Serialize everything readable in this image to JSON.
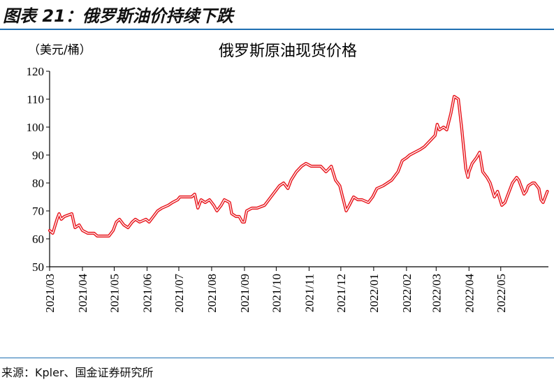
{
  "figure": {
    "title": "图表 21：俄罗斯油价持续下跌",
    "source": "来源：Kpler、国金证券研究所"
  },
  "chart_data": {
    "type": "line",
    "title": "俄罗斯原油现货价格",
    "ylabel": "（美元/桶）",
    "xlabel": "",
    "ylim": [
      50,
      120
    ],
    "yticks": [
      "50",
      "60",
      "70",
      "80",
      "90",
      "100",
      "110",
      "120"
    ],
    "xticks": [
      "2021/03",
      "2021/04",
      "2021/05",
      "2021/06",
      "2021/07",
      "2021/08",
      "2021/09",
      "2021/10",
      "2021/11",
      "2021/12",
      "2022/01",
      "2022/02",
      "2022/03",
      "2022/04",
      "2022/05"
    ],
    "grid": false,
    "legend": "none",
    "series_color": "#e8141b",
    "series": [
      {
        "points": [
          [
            "2021-03-01",
            63
          ],
          [
            "2021-03-04",
            62
          ],
          [
            "2021-03-08",
            67
          ],
          [
            "2021-03-10",
            69
          ],
          [
            "2021-03-12",
            67
          ],
          [
            "2021-03-15",
            68
          ],
          [
            "2021-03-22",
            69
          ],
          [
            "2021-03-25",
            64
          ],
          [
            "2021-03-29",
            65
          ],
          [
            "2021-04-01",
            63
          ],
          [
            "2021-04-06",
            62
          ],
          [
            "2021-04-12",
            62
          ],
          [
            "2021-04-15",
            61
          ],
          [
            "2021-04-20",
            61
          ],
          [
            "2021-04-26",
            61
          ],
          [
            "2021-04-30",
            63
          ],
          [
            "2021-05-03",
            66
          ],
          [
            "2021-05-06",
            67
          ],
          [
            "2021-05-10",
            65
          ],
          [
            "2021-05-14",
            64
          ],
          [
            "2021-05-18",
            66
          ],
          [
            "2021-05-21",
            67
          ],
          [
            "2021-05-25",
            66
          ],
          [
            "2021-05-31",
            67
          ],
          [
            "2021-06-03",
            66
          ],
          [
            "2021-06-07",
            68
          ],
          [
            "2021-06-11",
            70
          ],
          [
            "2021-06-15",
            71
          ],
          [
            "2021-06-21",
            72
          ],
          [
            "2021-06-25",
            73
          ],
          [
            "2021-06-30",
            74
          ],
          [
            "2021-07-02",
            75
          ],
          [
            "2021-07-08",
            75
          ],
          [
            "2021-07-13",
            75
          ],
          [
            "2021-07-16",
            76
          ],
          [
            "2021-07-19",
            71
          ],
          [
            "2021-07-22",
            74
          ],
          [
            "2021-07-26",
            73
          ],
          [
            "2021-07-30",
            74
          ],
          [
            "2021-08-03",
            72
          ],
          [
            "2021-08-06",
            70
          ],
          [
            "2021-08-10",
            72
          ],
          [
            "2021-08-13",
            74
          ],
          [
            "2021-08-18",
            73
          ],
          [
            "2021-08-20",
            69
          ],
          [
            "2021-08-24",
            68
          ],
          [
            "2021-08-27",
            68
          ],
          [
            "2021-08-30",
            66
          ],
          [
            "2021-09-01",
            66
          ],
          [
            "2021-09-03",
            70
          ],
          [
            "2021-09-08",
            71
          ],
          [
            "2021-09-13",
            71
          ],
          [
            "2021-09-20",
            72
          ],
          [
            "2021-09-24",
            74
          ],
          [
            "2021-09-30",
            77
          ],
          [
            "2021-10-04",
            79
          ],
          [
            "2021-10-08",
            80
          ],
          [
            "2021-10-12",
            78
          ],
          [
            "2021-10-15",
            81
          ],
          [
            "2021-10-20",
            84
          ],
          [
            "2021-10-25",
            86
          ],
          [
            "2021-10-29",
            87
          ],
          [
            "2021-11-03",
            86
          ],
          [
            "2021-11-08",
            86
          ],
          [
            "2021-11-12",
            86
          ],
          [
            "2021-11-17",
            84
          ],
          [
            "2021-11-22",
            86
          ],
          [
            "2021-11-26",
            81
          ],
          [
            "2021-11-30",
            79
          ],
          [
            "2021-12-02",
            76
          ],
          [
            "2021-12-06",
            70
          ],
          [
            "2021-12-09",
            72
          ],
          [
            "2021-12-13",
            75
          ],
          [
            "2021-12-17",
            74
          ],
          [
            "2021-12-21",
            74
          ],
          [
            "2021-12-27",
            73
          ],
          [
            "2021-12-31",
            75
          ],
          [
            "2022-01-04",
            78
          ],
          [
            "2022-01-10",
            79
          ],
          [
            "2022-01-14",
            80
          ],
          [
            "2022-01-18",
            81
          ],
          [
            "2022-01-24",
            84
          ],
          [
            "2022-01-28",
            88
          ],
          [
            "2022-02-01",
            89
          ],
          [
            "2022-02-04",
            90
          ],
          [
            "2022-02-09",
            91
          ],
          [
            "2022-02-14",
            92
          ],
          [
            "2022-02-18",
            93
          ],
          [
            "2022-02-23",
            95
          ],
          [
            "2022-02-28",
            97
          ],
          [
            "2022-03-02",
            101
          ],
          [
            "2022-03-04",
            99
          ],
          [
            "2022-03-08",
            100
          ],
          [
            "2022-03-11",
            99
          ],
          [
            "2022-03-15",
            105
          ],
          [
            "2022-03-18",
            111
          ],
          [
            "2022-03-22",
            110
          ],
          [
            "2022-03-25",
            100
          ],
          [
            "2022-03-29",
            85
          ],
          [
            "2022-03-31",
            82
          ],
          [
            "2022-04-01",
            84
          ],
          [
            "2022-04-04",
            87
          ],
          [
            "2022-04-08",
            89
          ],
          [
            "2022-04-11",
            91
          ],
          [
            "2022-04-14",
            84
          ],
          [
            "2022-04-18",
            82
          ],
          [
            "2022-04-21",
            80
          ],
          [
            "2022-04-25",
            75
          ],
          [
            "2022-04-28",
            77
          ],
          [
            "2022-05-02",
            72
          ],
          [
            "2022-05-05",
            73
          ],
          [
            "2022-05-09",
            77
          ],
          [
            "2022-05-12",
            80
          ],
          [
            "2022-05-16",
            82
          ],
          [
            "2022-05-18",
            81
          ],
          [
            "2022-05-20",
            79
          ],
          [
            "2022-05-23",
            76
          ],
          [
            "2022-05-25",
            77
          ],
          [
            "2022-05-27",
            79
          ],
          [
            "2022-05-31",
            80
          ],
          [
            "2022-06-02",
            80
          ],
          [
            "2022-06-06",
            78
          ],
          [
            "2022-06-08",
            74
          ],
          [
            "2022-06-10",
            73
          ],
          [
            "2022-06-14",
            77
          ]
        ]
      }
    ]
  }
}
